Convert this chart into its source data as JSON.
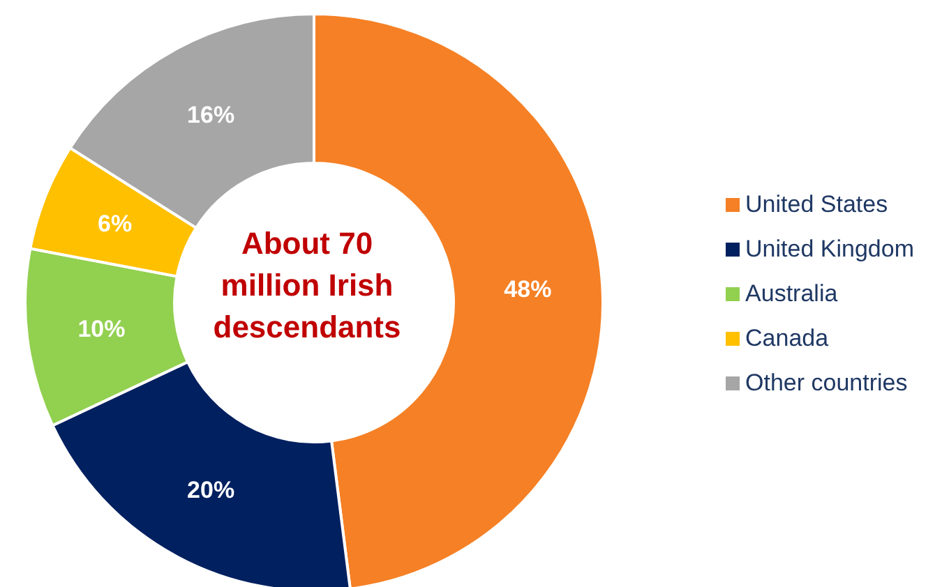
{
  "chart_data": {
    "type": "donut",
    "categories": [
      "United States",
      "United Kingdom",
      "Australia",
      "Canada",
      "Other countries"
    ],
    "values": [
      48,
      20,
      10,
      6,
      16
    ],
    "value_labels": [
      "48%",
      "20%",
      "10%",
      "6%",
      "16%"
    ],
    "colors": [
      "#f58025",
      "#002060",
      "#92d050",
      "#ffc000",
      "#a6a6a6"
    ],
    "annotations": [
      "About 70 million Irish descendants"
    ],
    "legend": "right"
  }
}
